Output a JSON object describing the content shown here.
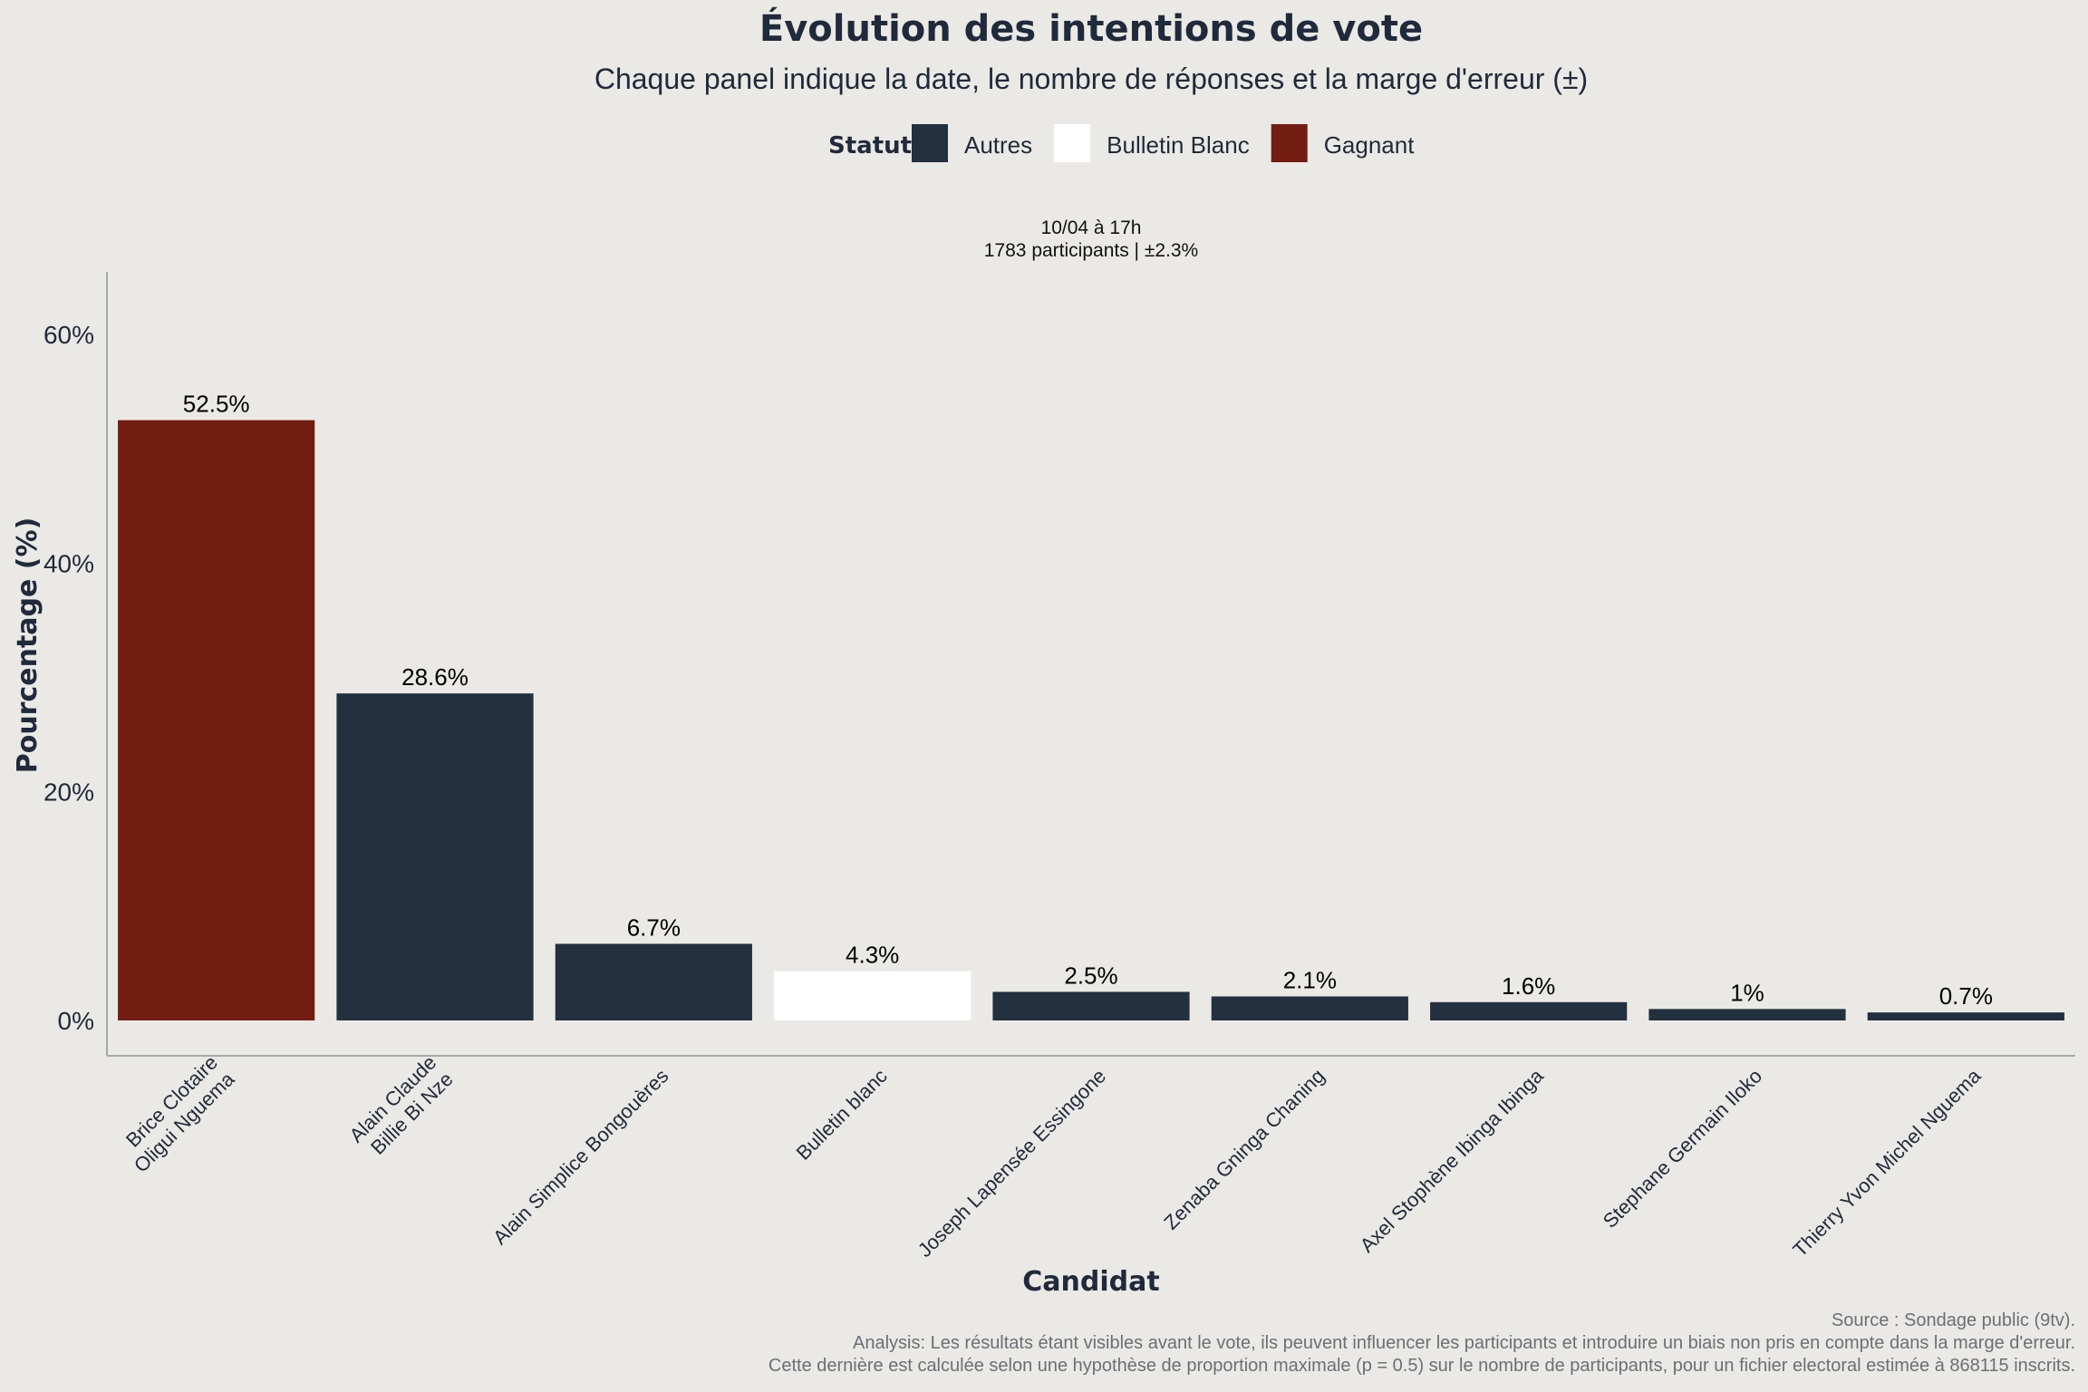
{
  "chart_data": {
    "type": "bar",
    "title": "Évolution des intentions de vote",
    "subtitle": "Chaque panel indique la date, le nombre de réponses et la marge d'erreur (±)",
    "legend": {
      "title": "Statut",
      "placement": "top",
      "items": [
        {
          "label": "Autres",
          "color": "#23303f"
        },
        {
          "label": "Bulletin Blanc",
          "color": "#ffffff"
        },
        {
          "label": "Gagnant",
          "color": "#731c12"
        }
      ]
    },
    "panel": {
      "line1": "10/04 à 17h",
      "line2": "1783 participants | ±2.3%"
    },
    "xlabel": "Candidat",
    "ylabel": "Pourcentage (%)",
    "ylim": [
      0,
      65
    ],
    "yticks": [
      0,
      20,
      40,
      60
    ],
    "ytick_labels": [
      "0%",
      "20%",
      "40%",
      "60%"
    ],
    "grid": false,
    "categories": [
      [
        "Brice Clotaire",
        "Oligui Nguema"
      ],
      [
        "Alain Claude",
        "Billie Bi Nze"
      ],
      [
        "Alain Simplice Bongouères"
      ],
      [
        "Bulletin blanc"
      ],
      [
        "Joseph Lapensée Essingone"
      ],
      [
        "Zenaba Gninga Chaning"
      ],
      [
        "Axel Stophène Ibinga Ibinga"
      ],
      [
        "Stephane Germain Iloko"
      ],
      [
        "Thierry Yvon Michel Nguema"
      ]
    ],
    "values": [
      52.5,
      28.6,
      6.7,
      4.3,
      2.5,
      2.1,
      1.6,
      1.0,
      0.7
    ],
    "value_labels": [
      "52.5%",
      "28.6%",
      "6.7%",
      "4.3%",
      "2.5%",
      "2.1%",
      "1.6%",
      "1%",
      "0.7%"
    ],
    "status": [
      "Gagnant",
      "Autres",
      "Autres",
      "Bulletin Blanc",
      "Autres",
      "Autres",
      "Autres",
      "Autres",
      "Autres"
    ],
    "colors": {
      "Gagnant": "#731c12",
      "Autres": "#23303f",
      "Bulletin Blanc": "#ffffff"
    }
  },
  "caption": {
    "line1": "Source : Sondage public (9tv).",
    "line2": "Analysis: Les résultats étant visibles avant le vote, ils peuvent influencer les participants et introduire un biais non pris en compte dans la marge d'erreur.",
    "line3": "Cette dernière est calculée selon une hypothèse de proportion maximale (p = 0.5) sur le nombre de participants, pour un fichier electoral estimée à 868115 inscrits."
  }
}
